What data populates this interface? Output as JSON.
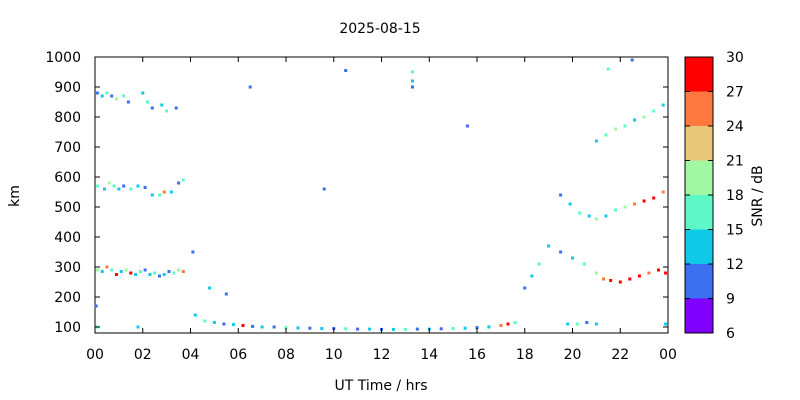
{
  "chart_data": {
    "type": "scatter",
    "title": "2025-08-15",
    "xlabel": "UT Time / hrs",
    "ylabel": "km",
    "xlim": [
      0,
      24
    ],
    "ylim": [
      80,
      1000
    ],
    "x_tick_labels": [
      "00",
      "02",
      "04",
      "06",
      "08",
      "10",
      "12",
      "14",
      "16",
      "18",
      "20",
      "22",
      "00"
    ],
    "y_tick_labels": [
      "100",
      "200",
      "300",
      "400",
      "500",
      "600",
      "700",
      "800",
      "900",
      "1000"
    ],
    "colorbar": {
      "label": "SNR / dB",
      "range": [
        6,
        30
      ],
      "tick_labels": [
        "6",
        "9",
        "12",
        "15",
        "18",
        "21",
        "24",
        "27",
        "30"
      ],
      "colors": [
        "#7f00ff",
        "#3a6ff0",
        "#10c8e8",
        "#5ef8c8",
        "#a0f8a0",
        "#e8c878",
        "#ff7840",
        "#ff0000"
      ]
    },
    "series": [
      {
        "points": [
          [
            0.1,
            290,
            18
          ],
          [
            0.3,
            285,
            12
          ],
          [
            0.5,
            300,
            24
          ],
          [
            0.7,
            290,
            15
          ],
          [
            0.9,
            275,
            27
          ],
          [
            1.1,
            285,
            12
          ],
          [
            1.3,
            290,
            18
          ],
          [
            1.5,
            280,
            27
          ],
          [
            1.7,
            275,
            12
          ],
          [
            1.9,
            285,
            15
          ],
          [
            2.1,
            290,
            9
          ],
          [
            2.3,
            275,
            12
          ],
          [
            2.5,
            280,
            15
          ],
          [
            2.7,
            270,
            9
          ],
          [
            2.9,
            275,
            12
          ],
          [
            3.1,
            285,
            9
          ],
          [
            3.3,
            280,
            15
          ],
          [
            3.5,
            290,
            18
          ],
          [
            3.7,
            285,
            24
          ],
          [
            0.1,
            570,
            15
          ],
          [
            0.4,
            560,
            12
          ],
          [
            0.6,
            580,
            18
          ],
          [
            0.8,
            570,
            15
          ],
          [
            1.0,
            560,
            12
          ],
          [
            1.2,
            570,
            9
          ],
          [
            1.5,
            560,
            15
          ],
          [
            1.8,
            570,
            12
          ],
          [
            2.1,
            565,
            9
          ],
          [
            2.4,
            540,
            12
          ],
          [
            2.7,
            540,
            15
          ],
          [
            2.9,
            550,
            24
          ],
          [
            3.2,
            550,
            12
          ],
          [
            3.5,
            580,
            9
          ],
          [
            3.7,
            590,
            15
          ],
          [
            0.1,
            880,
            9
          ],
          [
            0.3,
            870,
            12
          ],
          [
            0.5,
            880,
            15
          ],
          [
            0.7,
            870,
            9
          ],
          [
            0.9,
            860,
            18
          ],
          [
            1.2,
            870,
            15
          ],
          [
            1.4,
            850,
            9
          ],
          [
            2.0,
            880,
            12
          ],
          [
            2.2,
            850,
            15
          ],
          [
            2.4,
            830,
            9
          ],
          [
            2.8,
            840,
            12
          ],
          [
            3.0,
            820,
            15
          ],
          [
            3.4,
            830,
            9
          ],
          [
            4.2,
            140,
            12
          ],
          [
            4.6,
            120,
            15
          ],
          [
            5.0,
            115,
            12
          ],
          [
            5.4,
            110,
            9
          ],
          [
            5.8,
            108,
            12
          ],
          [
            6.2,
            105,
            27
          ],
          [
            6.6,
            102,
            9
          ],
          [
            7.0,
            100,
            12
          ],
          [
            7.5,
            100,
            9
          ],
          [
            8.0,
            98,
            15
          ],
          [
            8.5,
            97,
            12
          ],
          [
            9.0,
            96,
            9
          ],
          [
            9.5,
            95,
            12
          ],
          [
            10.0,
            95,
            9
          ],
          [
            10.5,
            94,
            15
          ],
          [
            11.0,
            93,
            9
          ],
          [
            11.5,
            93,
            12
          ],
          [
            12.0,
            92,
            9
          ],
          [
            12.5,
            92,
            12
          ],
          [
            13.0,
            92,
            15
          ],
          [
            13.5,
            93,
            9
          ],
          [
            14.0,
            93,
            12
          ],
          [
            14.5,
            94,
            9
          ],
          [
            15.0,
            95,
            15
          ],
          [
            15.5,
            96,
            12
          ],
          [
            16.0,
            98,
            9
          ],
          [
            16.5,
            100,
            12
          ],
          [
            17.0,
            105,
            24
          ],
          [
            17.3,
            110,
            27
          ],
          [
            17.6,
            115,
            15
          ],
          [
            18.0,
            230,
            9
          ],
          [
            18.3,
            270,
            12
          ],
          [
            18.6,
            310,
            15
          ],
          [
            19.0,
            370,
            12
          ],
          [
            19.5,
            350,
            9
          ],
          [
            20.0,
            330,
            12
          ],
          [
            20.5,
            310,
            15
          ],
          [
            21.0,
            280,
            18
          ],
          [
            21.3,
            260,
            24
          ],
          [
            21.6,
            255,
            30
          ],
          [
            22.0,
            250,
            30
          ],
          [
            22.4,
            260,
            27
          ],
          [
            22.8,
            270,
            30
          ],
          [
            23.2,
            280,
            24
          ],
          [
            23.6,
            290,
            30
          ],
          [
            23.9,
            280,
            27
          ],
          [
            19.5,
            540,
            9
          ],
          [
            19.9,
            510,
            12
          ],
          [
            20.3,
            480,
            15
          ],
          [
            20.7,
            470,
            12
          ],
          [
            21.0,
            460,
            18
          ],
          [
            21.4,
            470,
            12
          ],
          [
            21.8,
            490,
            15
          ],
          [
            22.2,
            500,
            18
          ],
          [
            22.6,
            510,
            24
          ],
          [
            23.0,
            520,
            27
          ],
          [
            23.4,
            530,
            30
          ],
          [
            23.8,
            550,
            24
          ],
          [
            21.0,
            720,
            12
          ],
          [
            21.4,
            740,
            15
          ],
          [
            21.8,
            760,
            18
          ],
          [
            22.2,
            770,
            15
          ],
          [
            22.6,
            790,
            12
          ],
          [
            23.0,
            800,
            18
          ],
          [
            23.4,
            820,
            15
          ],
          [
            23.8,
            840,
            12
          ],
          [
            19.8,
            110,
            12
          ],
          [
            20.2,
            110,
            15
          ],
          [
            20.6,
            115,
            9
          ],
          [
            21.0,
            110,
            12
          ],
          [
            6.5,
            900,
            9
          ],
          [
            10.5,
            955,
            9
          ],
          [
            13.3,
            950,
            15
          ],
          [
            13.3,
            920,
            12
          ],
          [
            13.3,
            900,
            9
          ],
          [
            15.6,
            770,
            9
          ],
          [
            9.6,
            560,
            9
          ],
          [
            4.1,
            350,
            9
          ],
          [
            5.5,
            210,
            9
          ],
          [
            4.8,
            230,
            12
          ],
          [
            0.05,
            170,
            9
          ],
          [
            0.1,
            100,
            15
          ],
          [
            1.8,
            100,
            12
          ],
          [
            21.5,
            960,
            15
          ],
          [
            22.5,
            990,
            9
          ],
          [
            23.9,
            110,
            12
          ]
        ]
      }
    ]
  }
}
